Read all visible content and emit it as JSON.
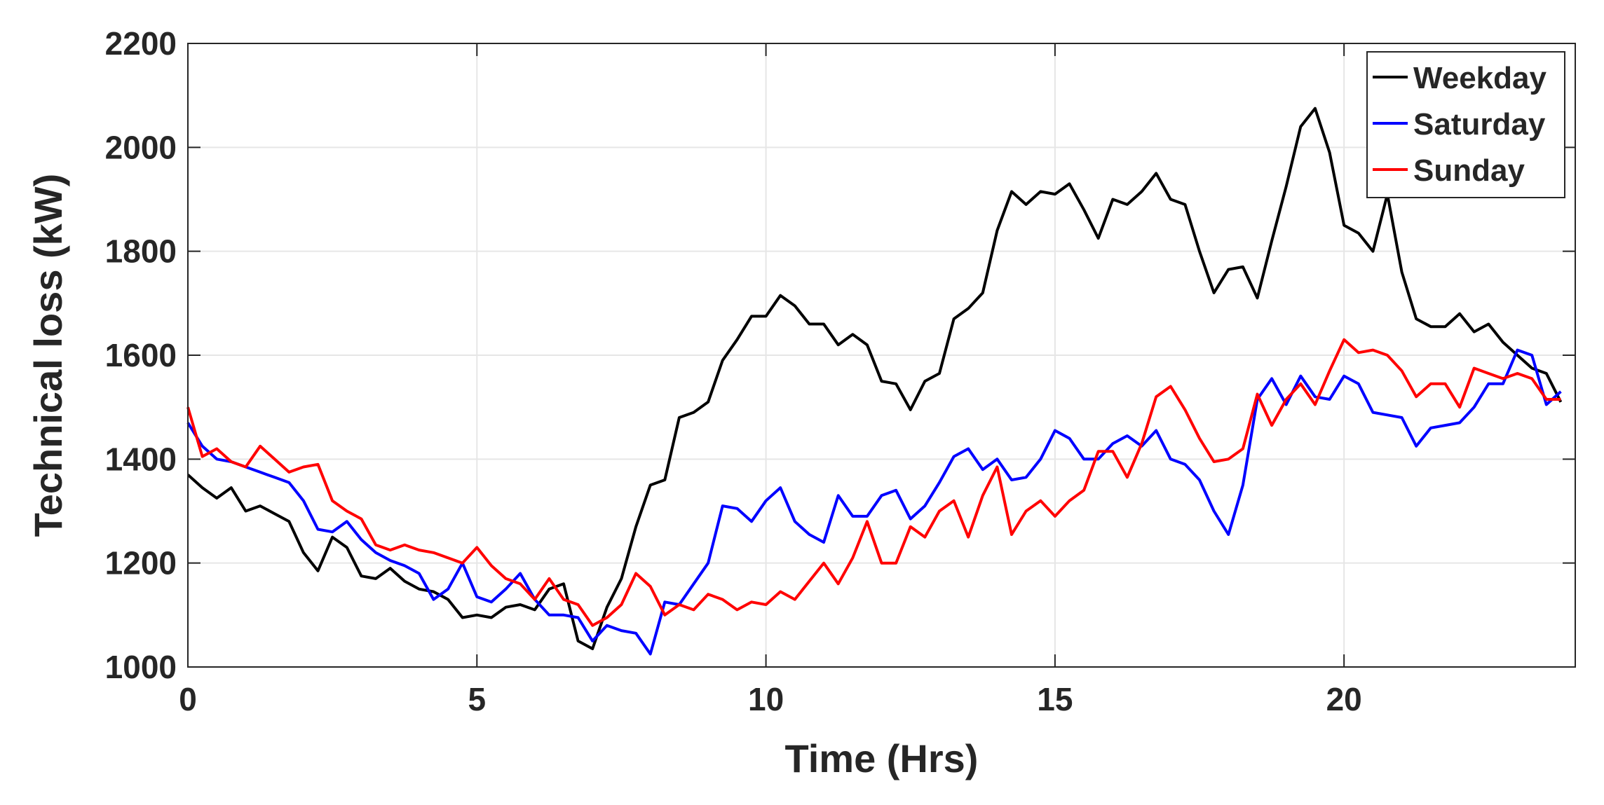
{
  "chart_data": {
    "type": "line",
    "title": "",
    "xlabel": "Time (Hrs)",
    "ylabel": "Technical loss (kW)",
    "xlim": [
      0,
      24
    ],
    "ylim": [
      1000,
      2200
    ],
    "xticks": [
      0,
      5,
      10,
      15,
      20
    ],
    "yticks": [
      1000,
      1200,
      1400,
      1600,
      1800,
      2000,
      2200
    ],
    "xtick_labels": [
      "0",
      "5",
      "10",
      "15",
      "20"
    ],
    "ytick_labels": [
      "1000",
      "1200",
      "1400",
      "1600",
      "1800",
      "2000",
      "2200"
    ],
    "grid": true,
    "legend_position": "top-right",
    "x": [
      0,
      0.25,
      0.5,
      0.75,
      1,
      1.25,
      1.5,
      1.75,
      2,
      2.25,
      2.5,
      2.75,
      3,
      3.25,
      3.5,
      3.75,
      4,
      4.25,
      4.5,
      4.75,
      5,
      5.25,
      5.5,
      5.75,
      6,
      6.25,
      6.5,
      6.75,
      7,
      7.25,
      7.5,
      7.75,
      8,
      8.25,
      8.5,
      8.75,
      9,
      9.25,
      9.5,
      9.75,
      10,
      10.25,
      10.5,
      10.75,
      11,
      11.25,
      11.5,
      11.75,
      12,
      12.25,
      12.5,
      12.75,
      13,
      13.25,
      13.5,
      13.75,
      14,
      14.25,
      14.5,
      14.75,
      15,
      15.25,
      15.5,
      15.75,
      16,
      16.25,
      16.5,
      16.75,
      17,
      17.25,
      17.5,
      17.75,
      18,
      18.25,
      18.5,
      18.75,
      19,
      19.25,
      19.5,
      19.75,
      20,
      20.25,
      20.5,
      20.75,
      21,
      21.25,
      21.5,
      21.75,
      22,
      22.25,
      22.5,
      22.75,
      23,
      23.25,
      23.5,
      23.75
    ],
    "series": [
      {
        "name": "Weekday",
        "color": "#000000",
        "values": [
          1370,
          1345,
          1325,
          1345,
          1300,
          1310,
          1295,
          1280,
          1220,
          1185,
          1250,
          1230,
          1175,
          1170,
          1190,
          1165,
          1150,
          1145,
          1130,
          1095,
          1100,
          1095,
          1115,
          1120,
          1110,
          1150,
          1160,
          1050,
          1035,
          1115,
          1170,
          1270,
          1350,
          1360,
          1480,
          1490,
          1510,
          1590,
          1630,
          1675,
          1675,
          1715,
          1695,
          1660,
          1660,
          1620,
          1640,
          1620,
          1550,
          1545,
          1495,
          1550,
          1565,
          1670,
          1690,
          1720,
          1840,
          1915,
          1890,
          1915,
          1910,
          1930,
          1880,
          1825,
          1900,
          1890,
          1915,
          1950,
          1900,
          1890,
          1800,
          1720,
          1765,
          1770,
          1710,
          1820,
          1925,
          2040,
          2075,
          1990,
          1850,
          1835,
          1800,
          1910,
          1760,
          1670,
          1655,
          1655,
          1680,
          1645,
          1660,
          1625,
          1600,
          1575,
          1565,
          1510
        ]
      },
      {
        "name": "Saturday",
        "color": "#0000ff",
        "values": [
          1470,
          1425,
          1400,
          1395,
          1385,
          1375,
          1365,
          1355,
          1320,
          1265,
          1260,
          1280,
          1245,
          1220,
          1205,
          1195,
          1180,
          1130,
          1150,
          1200,
          1135,
          1125,
          1150,
          1180,
          1130,
          1100,
          1100,
          1095,
          1050,
          1080,
          1070,
          1065,
          1025,
          1125,
          1120,
          1160,
          1200,
          1310,
          1305,
          1280,
          1320,
          1345,
          1280,
          1255,
          1240,
          1330,
          1290,
          1290,
          1330,
          1340,
          1285,
          1310,
          1355,
          1405,
          1420,
          1380,
          1400,
          1360,
          1365,
          1400,
          1455,
          1440,
          1400,
          1400,
          1430,
          1445,
          1425,
          1455,
          1400,
          1390,
          1360,
          1300,
          1255,
          1350,
          1515,
          1555,
          1505,
          1560,
          1520,
          1515,
          1560,
          1545,
          1490,
          1485,
          1480,
          1425,
          1460,
          1465,
          1470,
          1500,
          1545,
          1545,
          1610,
          1600,
          1505,
          1530
        ]
      },
      {
        "name": "Sunday",
        "color": "#ff0000",
        "values": [
          1500,
          1405,
          1420,
          1395,
          1385,
          1425,
          1400,
          1375,
          1385,
          1390,
          1320,
          1300,
          1285,
          1235,
          1225,
          1235,
          1225,
          1220,
          1210,
          1200,
          1230,
          1195,
          1170,
          1160,
          1130,
          1170,
          1130,
          1120,
          1080,
          1095,
          1120,
          1180,
          1155,
          1100,
          1120,
          1110,
          1140,
          1130,
          1110,
          1125,
          1120,
          1145,
          1130,
          1165,
          1200,
          1160,
          1210,
          1280,
          1200,
          1200,
          1270,
          1250,
          1300,
          1320,
          1250,
          1330,
          1385,
          1255,
          1300,
          1320,
          1290,
          1320,
          1340,
          1415,
          1415,
          1365,
          1430,
          1520,
          1540,
          1495,
          1440,
          1395,
          1400,
          1420,
          1525,
          1465,
          1515,
          1545,
          1505,
          1570,
          1630,
          1605,
          1610,
          1600,
          1570,
          1520,
          1545,
          1545,
          1500,
          1575,
          1565,
          1555,
          1565,
          1555,
          1515,
          1515
        ]
      }
    ]
  }
}
